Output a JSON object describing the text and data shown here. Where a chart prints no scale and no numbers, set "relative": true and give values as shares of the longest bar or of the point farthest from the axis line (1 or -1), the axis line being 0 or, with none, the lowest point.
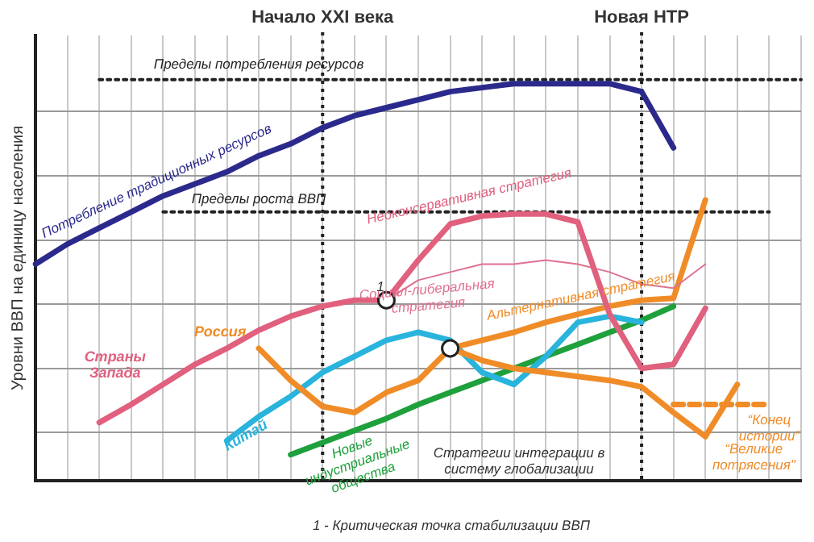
{
  "chart_data": {
    "type": "line",
    "relative": true,
    "ylabel": "Уровни ВВП на единицу населения",
    "grid": true,
    "marker": "none",
    "line_style": "solid",
    "categories": [
      null,
      null,
      null,
      null,
      null,
      null,
      null,
      null,
      null,
      "Начало XXI века",
      null,
      null,
      null,
      null,
      null,
      null,
      null,
      null,
      null,
      "Новая НТР",
      null,
      null,
      null,
      null,
      null
    ],
    "series": [
      {
        "name": "Потребление традиционных ресурсов",
        "color": "#2b2a8c",
        "values": [
          0.54,
          0.59,
          0.63,
          0.67,
          0.71,
          0.74,
          0.77,
          0.81,
          0.84,
          0.88,
          0.91,
          0.93,
          0.95,
          0.97,
          0.98,
          0.99,
          0.99,
          0.99,
          0.99,
          0.97,
          0.83,
          null,
          null,
          null,
          null
        ]
      },
      {
        "name": "Страны Запада",
        "color": "#e0607e",
        "values": [
          null,
          null,
          0.145,
          0.19,
          0.24,
          0.29,
          0.33,
          0.375,
          0.41,
          0.435,
          0.45,
          0.45,
          null,
          null,
          null,
          null,
          null,
          null,
          null,
          null,
          null,
          null,
          null,
          null,
          null
        ]
      },
      {
        "name": "Неоконсервативная стратегия",
        "color": "#e0607e",
        "values": [
          null,
          null,
          null,
          null,
          null,
          null,
          null,
          null,
          null,
          null,
          null,
          0.45,
          0.55,
          0.64,
          0.66,
          0.665,
          0.665,
          0.645,
          0.415,
          0.28,
          0.29,
          0.43,
          null,
          null,
          null
        ]
      },
      {
        "name": "Социал-либеральная стратегия",
        "color": "#e07090",
        "values": [
          null,
          null,
          null,
          null,
          null,
          null,
          null,
          null,
          null,
          null,
          null,
          0.45,
          0.5,
          0.52,
          0.54,
          0.54,
          0.55,
          0.54,
          0.52,
          0.49,
          0.48,
          0.54,
          null,
          null,
          null
        ]
      },
      {
        "name": "Россия",
        "color": "#f08c28",
        "values": [
          null,
          null,
          null,
          null,
          null,
          null,
          null,
          0.33,
          0.25,
          0.185,
          0.17,
          0.22,
          0.25,
          0.33,
          null,
          null,
          null,
          null,
          null,
          null,
          null,
          null,
          null,
          null,
          null
        ]
      },
      {
        "name": "Альтернативная стратегия",
        "color": "#f08c28",
        "values": [
          null,
          null,
          null,
          null,
          null,
          null,
          null,
          null,
          null,
          null,
          null,
          null,
          null,
          0.33,
          0.35,
          0.37,
          0.395,
          0.415,
          0.435,
          0.45,
          0.455,
          0.7,
          null,
          null,
          null
        ]
      },
      {
        "name": "“Великие потрясения”",
        "color": "#f08c28",
        "values": [
          null,
          null,
          null,
          null,
          null,
          null,
          null,
          null,
          null,
          null,
          null,
          null,
          null,
          0.33,
          0.3,
          0.28,
          0.27,
          0.26,
          0.25,
          0.234,
          0.17,
          0.11,
          0.24,
          null,
          null
        ]
      },
      {
        "name": "“Конец истории”",
        "color": "#f08c28",
        "line_style": "dashed",
        "values": [
          null,
          null,
          null,
          null,
          null,
          null,
          null,
          null,
          null,
          null,
          null,
          null,
          null,
          null,
          null,
          null,
          null,
          null,
          null,
          null,
          0.19,
          0.19,
          0.19,
          0.19,
          null
        ]
      },
      {
        "name": "Китай",
        "color": "#28b4dc",
        "values": [
          null,
          null,
          null,
          null,
          null,
          null,
          0.1,
          0.16,
          0.21,
          0.27,
          0.31,
          0.35,
          0.37,
          0.35,
          0.27,
          0.24,
          0.31,
          0.395,
          0.41,
          0.395,
          null,
          null,
          null,
          null,
          null
        ]
      },
      {
        "name": "Новые индустриальные общества",
        "color": "#1ea03c",
        "values": [
          null,
          null,
          null,
          null,
          null,
          null,
          null,
          null,
          0.065,
          0.095,
          0.125,
          0.155,
          0.19,
          0.22,
          0.25,
          0.28,
          0.31,
          0.34,
          0.37,
          0.4,
          0.435,
          null,
          null,
          null,
          null
        ]
      },
      {
        "type": "scatter",
        "marker": "circle",
        "color": "#ffffff",
        "values": [
          null,
          null,
          null,
          null,
          null,
          null,
          null,
          null,
          null,
          null,
          null,
          0.45,
          null,
          0.33,
          null,
          null,
          null,
          null,
          null,
          null,
          null,
          null,
          null,
          null,
          null
        ]
      },
      {
        "name": "Пределы потребления ресурсов",
        "color": "#222222",
        "line_style": "dotted",
        "values": [
          null,
          null,
          1,
          1,
          1,
          1,
          1,
          1,
          1,
          1,
          1,
          1,
          1,
          1,
          1,
          1,
          1,
          1,
          1,
          1,
          1,
          1,
          1,
          1,
          1
        ]
      },
      {
        "name": "Пределы роста ВВП",
        "color": "#222222",
        "line_style": "dotted",
        "values": [
          null,
          null,
          null,
          null,
          0.67,
          0.67,
          0.67,
          0.67,
          0.67,
          0.67,
          0.67,
          0.67,
          0.67,
          0.67,
          0.67,
          0.67,
          0.67,
          0.67,
          0.67,
          0.67,
          0.67,
          0.67,
          0.67,
          0.67,
          null
        ]
      }
    ],
    "ref_lines": [
      {
        "axis": "x",
        "value": "Начало XXI века",
        "line_style": "dotted",
        "color": "#222222"
      },
      {
        "axis": "x",
        "value": "Новая НТР",
        "line_style": "dotted",
        "color": "#222222"
      }
    ],
    "annotations": [
      "1",
      "Стратегии интеграции в систему глобализации",
      "1 - Критическая точка стабилизации ВВП"
    ]
  }
}
